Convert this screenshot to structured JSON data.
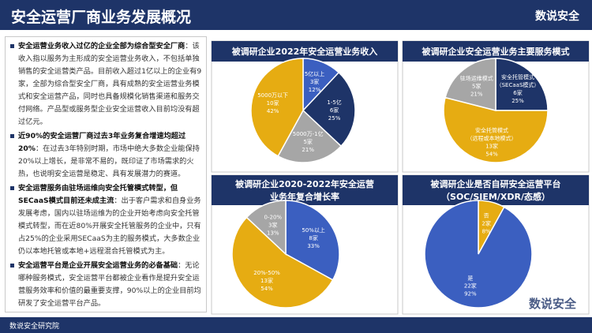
{
  "header": {
    "title": "安全运营厂商业务发展概况",
    "logo": "数说安全"
  },
  "footer": "数说安全研究院",
  "watermark": "数说安全",
  "bullets": [
    {
      "bold": "安全运营业务收入过亿的企业全部为综合型安全厂商",
      "text": "：该收入指以服务为主形成的安全运营业务收入，不包括单独销售的安全运营类产品。目前收入超过1亿以上的企业有9家，全部为综合型安全厂商，具有成熟的安全运营业务模式和安全运营产品，同时也具备规模化销售渠道和服务交付网络。产品型或服务型企业安全运营收入目前均没有超过亿元。"
    },
    {
      "bold": "近90%的安全运营厂商过去3年业务复合增速均超过20%",
      "text": "：在过去3年特别时期，市场中绝大多数企业能保持20%以上增长，是非常不易的，既印证了市场需求的火热，也说明安全运营是稳定、具有发展潜力的赛道。"
    },
    {
      "bold": "安全运营服务由驻场运维向安全托管模式转型，但SECaaS模式目前还未成主流",
      "text": "：出于客户需求和自身业务发展考虑，国内以驻场运维为的企业开始考虑向安全托管模式转型，而在近80%开展安全托管服务的企业中，只有占25%的企业采用SECaaS为主的服务模式，大多数企业仍以本地托管或本地+远程混合托管模式为主。"
    },
    {
      "bold": "安全运营平台是企业开展安全运营业务的必备基础",
      "text": "：无论哪种服务模式，安全运营平台都被企业看作是提升安全运营服务效率和价值的最重要支撑，90%以上的企业目前均研发了安全运营平台产品。"
    }
  ],
  "chart_data": [
    {
      "type": "pie",
      "title": [
        "被调研企业2022年安全运营业务收入"
      ],
      "labels": [
        [
          "5亿以上"
        ],
        [
          "1-5亿"
        ],
        [
          "5000万-1亿"
        ],
        [
          "5000万以下"
        ]
      ],
      "counts": [
        "3家",
        "6家",
        "5家",
        "10家"
      ],
      "values": [
        12,
        25,
        21,
        42
      ],
      "value_labels": [
        "12%",
        "25%",
        "21%",
        "42%"
      ],
      "colors": [
        "#3b5fc0",
        "#1e3468",
        "#a6a6a6",
        "#e6ac12"
      ]
    },
    {
      "type": "pie",
      "title": [
        "被调研企业安全运营业务主要服务模式"
      ],
      "labels": [
        [
          "安全托管模式",
          "（SECaaS模式）"
        ],
        [
          "安全托管模式",
          "（远程或本地模式）"
        ],
        [
          "驻场运维模式"
        ]
      ],
      "counts": [
        "6家",
        "13家",
        "5家"
      ],
      "values": [
        25,
        54,
        21
      ],
      "value_labels": [
        "25%",
        "54%",
        "21%"
      ],
      "colors": [
        "#1e3468",
        "#e6ac12",
        "#a6a6a6"
      ]
    },
    {
      "type": "pie",
      "title": [
        "被调研企业2020-2022年安全运营",
        "业务年复合增长率"
      ],
      "labels": [
        [
          "50%以上"
        ],
        [
          "20%-50%"
        ],
        [
          "0-20%"
        ]
      ],
      "counts": [
        "8家",
        "13家",
        "3家"
      ],
      "values": [
        33,
        54,
        13
      ],
      "value_labels": [
        "33%",
        "54%",
        "13%"
      ],
      "colors": [
        "#3b5fc0",
        "#e6ac12",
        "#a6a6a6"
      ]
    },
    {
      "type": "pie",
      "title": [
        "被调研企业是否自研安全运营平台",
        "（SOC/SIEM/XDR/态感）"
      ],
      "labels": [
        [
          "否"
        ],
        [
          "是"
        ]
      ],
      "counts": [
        "2家",
        "22家"
      ],
      "values": [
        8,
        92
      ],
      "value_labels": [
        "8%",
        "92%"
      ],
      "colors": [
        "#e6ac12",
        "#3b5fc0"
      ]
    }
  ]
}
